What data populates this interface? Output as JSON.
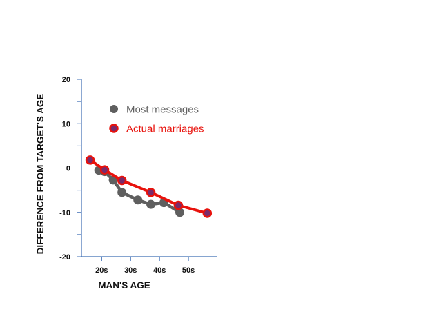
{
  "chart_data": {
    "type": "line",
    "xlabel": "MAN'S AGE",
    "ylabel": "DIFFERENCE FROM TARGET'S AGE",
    "ylim": [
      -20,
      20
    ],
    "xlim": [
      18,
      65
    ],
    "y_ticks": [
      20,
      10,
      0,
      -10,
      -20
    ],
    "y_tick_labels": [
      "20",
      "10",
      "0",
      "-10",
      "-20"
    ],
    "x_ticks": [
      25,
      35,
      45,
      55
    ],
    "x_tick_labels": [
      "20s",
      "30s",
      "40s",
      "50s"
    ],
    "reference_line": {
      "y": 0,
      "style": "dashed"
    },
    "legend_position": "upper-left (inside)",
    "grid": false,
    "series": [
      {
        "name": "Most messages",
        "color": "#5f5f5f",
        "points": [
          {
            "x": 24,
            "y": -0.5
          },
          {
            "x": 26,
            "y": -0.8
          },
          {
            "x": 29,
            "y": -2.7
          },
          {
            "x": 32,
            "y": -5.5
          },
          {
            "x": 37.5,
            "y": -7.2
          },
          {
            "x": 42,
            "y": -8.2
          },
          {
            "x": 46.5,
            "y": -7.8
          },
          {
            "x": 52,
            "y": -10.0
          }
        ]
      },
      {
        "name": "Actual marriages",
        "color": "#e8120c",
        "points": [
          {
            "x": 21,
            "y": 1.8
          },
          {
            "x": 26,
            "y": -0.4
          },
          {
            "x": 32,
            "y": -2.8
          },
          {
            "x": 42,
            "y": -5.5
          },
          {
            "x": 51.5,
            "y": -8.4
          },
          {
            "x": 61.5,
            "y": -10.2
          }
        ]
      }
    ]
  }
}
